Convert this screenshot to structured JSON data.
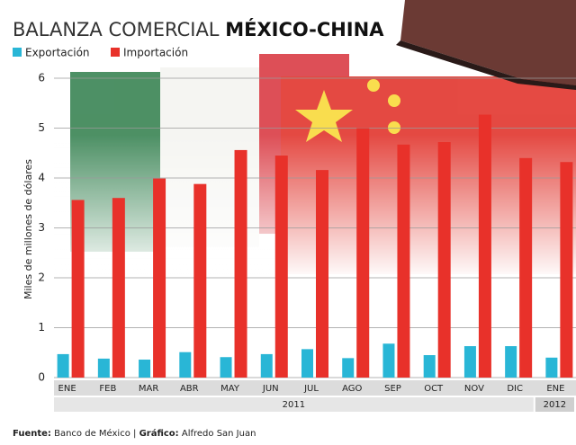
{
  "chart_data": {
    "type": "bar",
    "title": {
      "light": "BALANZA COMERCIAL",
      "bold": "MÉXICO-CHINA"
    },
    "ylabel": "Miles de millones de dólares",
    "categories": [
      "ENE",
      "FEB",
      "MAR",
      "ABR",
      "MAY",
      "JUN",
      "JUL",
      "AGO",
      "SEP",
      "OCT",
      "NOV",
      "DIC",
      "ENE"
    ],
    "category_years": [
      "2011",
      "2011",
      "2011",
      "2011",
      "2011",
      "2011",
      "2011",
      "2011",
      "2011",
      "2011",
      "2011",
      "2011",
      "2012"
    ],
    "series": [
      {
        "name": "Exportación",
        "color": "#29b6d6",
        "values": [
          0.47,
          0.38,
          0.36,
          0.51,
          0.41,
          0.47,
          0.57,
          0.39,
          0.68,
          0.45,
          0.63,
          0.63,
          0.4
        ]
      },
      {
        "name": "Importación",
        "color": "#e8312a",
        "values": [
          3.56,
          3.6,
          3.99,
          3.88,
          4.56,
          4.45,
          4.16,
          5.0,
          4.67,
          4.72,
          5.27,
          4.4,
          4.32
        ]
      }
    ],
    "ylim": [
      0,
      6
    ],
    "yticks": [
      0,
      1,
      2,
      3,
      4,
      5,
      6
    ],
    "grid": true,
    "footer": {
      "source_label": "Fuente:",
      "source": "Banco de México",
      "credit_label": "Gráfico:",
      "credit": "Alfredo San Juan"
    }
  }
}
